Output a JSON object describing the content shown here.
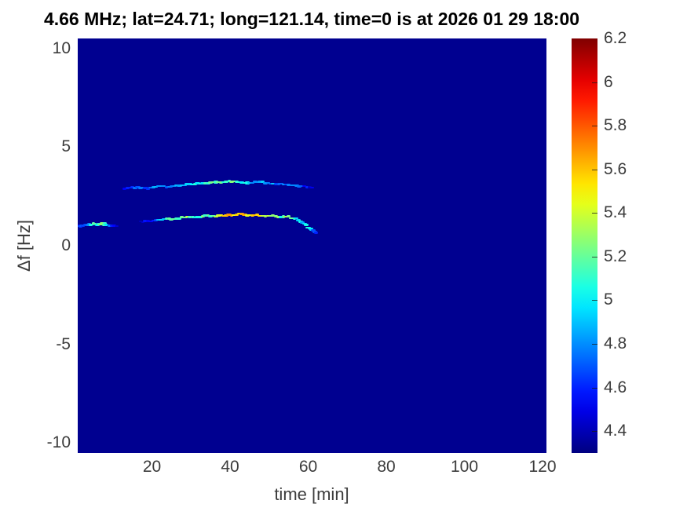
{
  "chart_data": {
    "type": "heatmap",
    "title": "4.66 MHz;  lat=24.71; long=121.14, time=0 is at 2026 01 29 18:00",
    "xlabel": "time [min]",
    "ylabel": "Δf [Hz]",
    "xlim": [
      1,
      121
    ],
    "ylim": [
      -10.5,
      10.5
    ],
    "xticks": [
      20,
      40,
      60,
      80,
      100,
      120
    ],
    "yticks": [
      10,
      5,
      0,
      -5,
      -10
    ],
    "grid": false,
    "colormap": "jet",
    "colorbar": {
      "position": "right",
      "min": 4.3,
      "max": 6.2,
      "ticks": [
        6.2,
        6,
        5.8,
        5.6,
        5.4,
        5.2,
        5,
        4.8,
        4.6,
        4.4
      ]
    },
    "background_value": 4.33,
    "ridges": [
      {
        "name": "lower-doppler-trace",
        "segments": [
          [
            [
              1,
              1.0,
              4.55
            ],
            [
              2,
              1.0,
              4.6
            ],
            [
              3,
              1.05,
              4.7
            ],
            [
              4,
              1.1,
              4.9
            ],
            [
              5,
              1.1,
              5.2
            ],
            [
              6,
              1.05,
              5.0
            ],
            [
              7,
              1.1,
              5.25
            ],
            [
              8,
              1.1,
              5.15
            ],
            [
              9,
              1.05,
              4.8
            ],
            [
              10,
              1.0,
              4.6
            ],
            [
              11,
              1.0,
              4.45
            ]
          ],
          [
            [
              17,
              1.2,
              4.45
            ],
            [
              19,
              1.25,
              4.55
            ],
            [
              21,
              1.3,
              4.75
            ],
            [
              23,
              1.35,
              5.0
            ],
            [
              25,
              1.35,
              5.2
            ],
            [
              27,
              1.4,
              5.1
            ],
            [
              29,
              1.45,
              5.3
            ],
            [
              31,
              1.45,
              5.05
            ],
            [
              33,
              1.5,
              5.2
            ],
            [
              35,
              1.5,
              5.1
            ],
            [
              37,
              1.5,
              5.35
            ],
            [
              39,
              1.55,
              5.65
            ],
            [
              41,
              1.55,
              5.5
            ],
            [
              43,
              1.6,
              5.7
            ],
            [
              45,
              1.55,
              5.45
            ],
            [
              47,
              1.55,
              5.6
            ],
            [
              49,
              1.5,
              5.25
            ],
            [
              51,
              1.5,
              5.35
            ],
            [
              53,
              1.45,
              5.15
            ],
            [
              55,
              1.45,
              5.3
            ],
            [
              57,
              1.35,
              5.0
            ],
            [
              58.5,
              1.2,
              4.95
            ],
            [
              60,
              0.95,
              5.15
            ],
            [
              61,
              0.8,
              4.85
            ],
            [
              62,
              0.65,
              4.6
            ]
          ]
        ]
      },
      {
        "name": "upper-doppler-trace",
        "segments": [
          [
            [
              13,
              2.9,
              4.5
            ],
            [
              15,
              2.95,
              4.65
            ],
            [
              17,
              2.95,
              4.75
            ],
            [
              19,
              2.9,
              4.65
            ],
            [
              21,
              3.0,
              4.9
            ],
            [
              23,
              3.0,
              4.75
            ],
            [
              25,
              3.0,
              4.85
            ],
            [
              27,
              3.05,
              4.9
            ],
            [
              29,
              3.1,
              4.95
            ],
            [
              31,
              3.1,
              5.05
            ],
            [
              33,
              3.15,
              5.0
            ],
            [
              35,
              3.2,
              5.15
            ],
            [
              37,
              3.2,
              5.25
            ],
            [
              39,
              3.25,
              5.15
            ],
            [
              41,
              3.25,
              5.2
            ],
            [
              43,
              3.2,
              5.0
            ],
            [
              45,
              3.2,
              4.9
            ],
            [
              47,
              3.25,
              4.85
            ],
            [
              49,
              3.2,
              4.9
            ],
            [
              51,
              3.15,
              4.8
            ],
            [
              53,
              3.1,
              4.7
            ],
            [
              55,
              3.1,
              4.8
            ],
            [
              57,
              3.05,
              4.7
            ],
            [
              59,
              3.0,
              4.6
            ],
            [
              61,
              2.95,
              4.5
            ]
          ]
        ]
      }
    ]
  }
}
